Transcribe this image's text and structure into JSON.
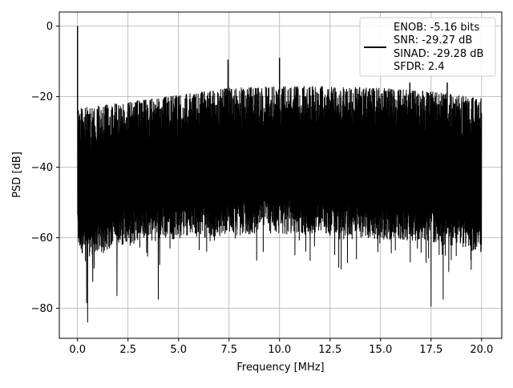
{
  "chart_data": {
    "type": "line",
    "title": "",
    "xlabel": "Frequency [MHz]",
    "ylabel": "PSD [dB]",
    "xlim": [
      -0.9,
      21.0
    ],
    "ylim": [
      -88.5,
      4.0
    ],
    "x_ticks": [
      0.0,
      2.5,
      5.0,
      7.5,
      10.0,
      12.5,
      15.0,
      17.5,
      20.0
    ],
    "x_tick_labels": [
      "0.0",
      "2.5",
      "5.0",
      "7.5",
      "10.0",
      "12.5",
      "15.0",
      "17.5",
      "20.0"
    ],
    "y_ticks": [
      0,
      -20,
      -40,
      -60,
      -80
    ],
    "y_tick_labels": [
      "0",
      "−20",
      "−40",
      "−60",
      "−80"
    ],
    "grid": true,
    "legend_position": "top-right",
    "line_color": "#000000",
    "series": [
      {
        "name": "ENOB: -5.16 bits\nSNR: -29.27 dB\nSINAD: -29.28 dB\nSFDR: 2.4",
        "legend_lines": [
          "ENOB: -5.16 bits",
          "SNR: -29.27 dB",
          "SINAD: -29.28 dB",
          "SFDR: 2.4"
        ],
        "description": "Dense noise-floor PSD from 0 to 20 MHz with a carrier peak at 0 MHz",
        "x_range": [
          0.0,
          20.0
        ],
        "upper_envelope": [
          [
            0.0,
            -23
          ],
          [
            0.5,
            -23
          ],
          [
            1.0,
            -22.5
          ],
          [
            2.5,
            -21.5
          ],
          [
            5.0,
            -19.5
          ],
          [
            7.5,
            -17.5
          ],
          [
            10.0,
            -17
          ],
          [
            12.5,
            -17
          ],
          [
            15.0,
            -17.5
          ],
          [
            17.5,
            -18.5
          ],
          [
            20.0,
            -20.5
          ]
        ],
        "lower_envelope": [
          [
            0.0,
            -60
          ],
          [
            0.5,
            -62
          ],
          [
            2.5,
            -58
          ],
          [
            5.0,
            -57
          ],
          [
            7.5,
            -56
          ],
          [
            10.0,
            -55.5
          ],
          [
            12.5,
            -56
          ],
          [
            15.0,
            -57
          ],
          [
            17.5,
            -58
          ],
          [
            20.0,
            -61
          ]
        ],
        "peaks": [
          [
            0.0,
            0.0
          ],
          [
            7.45,
            -9.5
          ],
          [
            10.0,
            -9
          ],
          [
            16.45,
            -16
          ],
          [
            18.3,
            -16
          ]
        ],
        "dips": [
          [
            0.5,
            -84
          ],
          [
            0.45,
            -78.5
          ],
          [
            4.0,
            -77.5
          ],
          [
            17.5,
            -79.5
          ],
          [
            18.1,
            -77.5
          ],
          [
            1.95,
            -76.5
          ],
          [
            0.75,
            -72.5
          ]
        ]
      }
    ]
  }
}
